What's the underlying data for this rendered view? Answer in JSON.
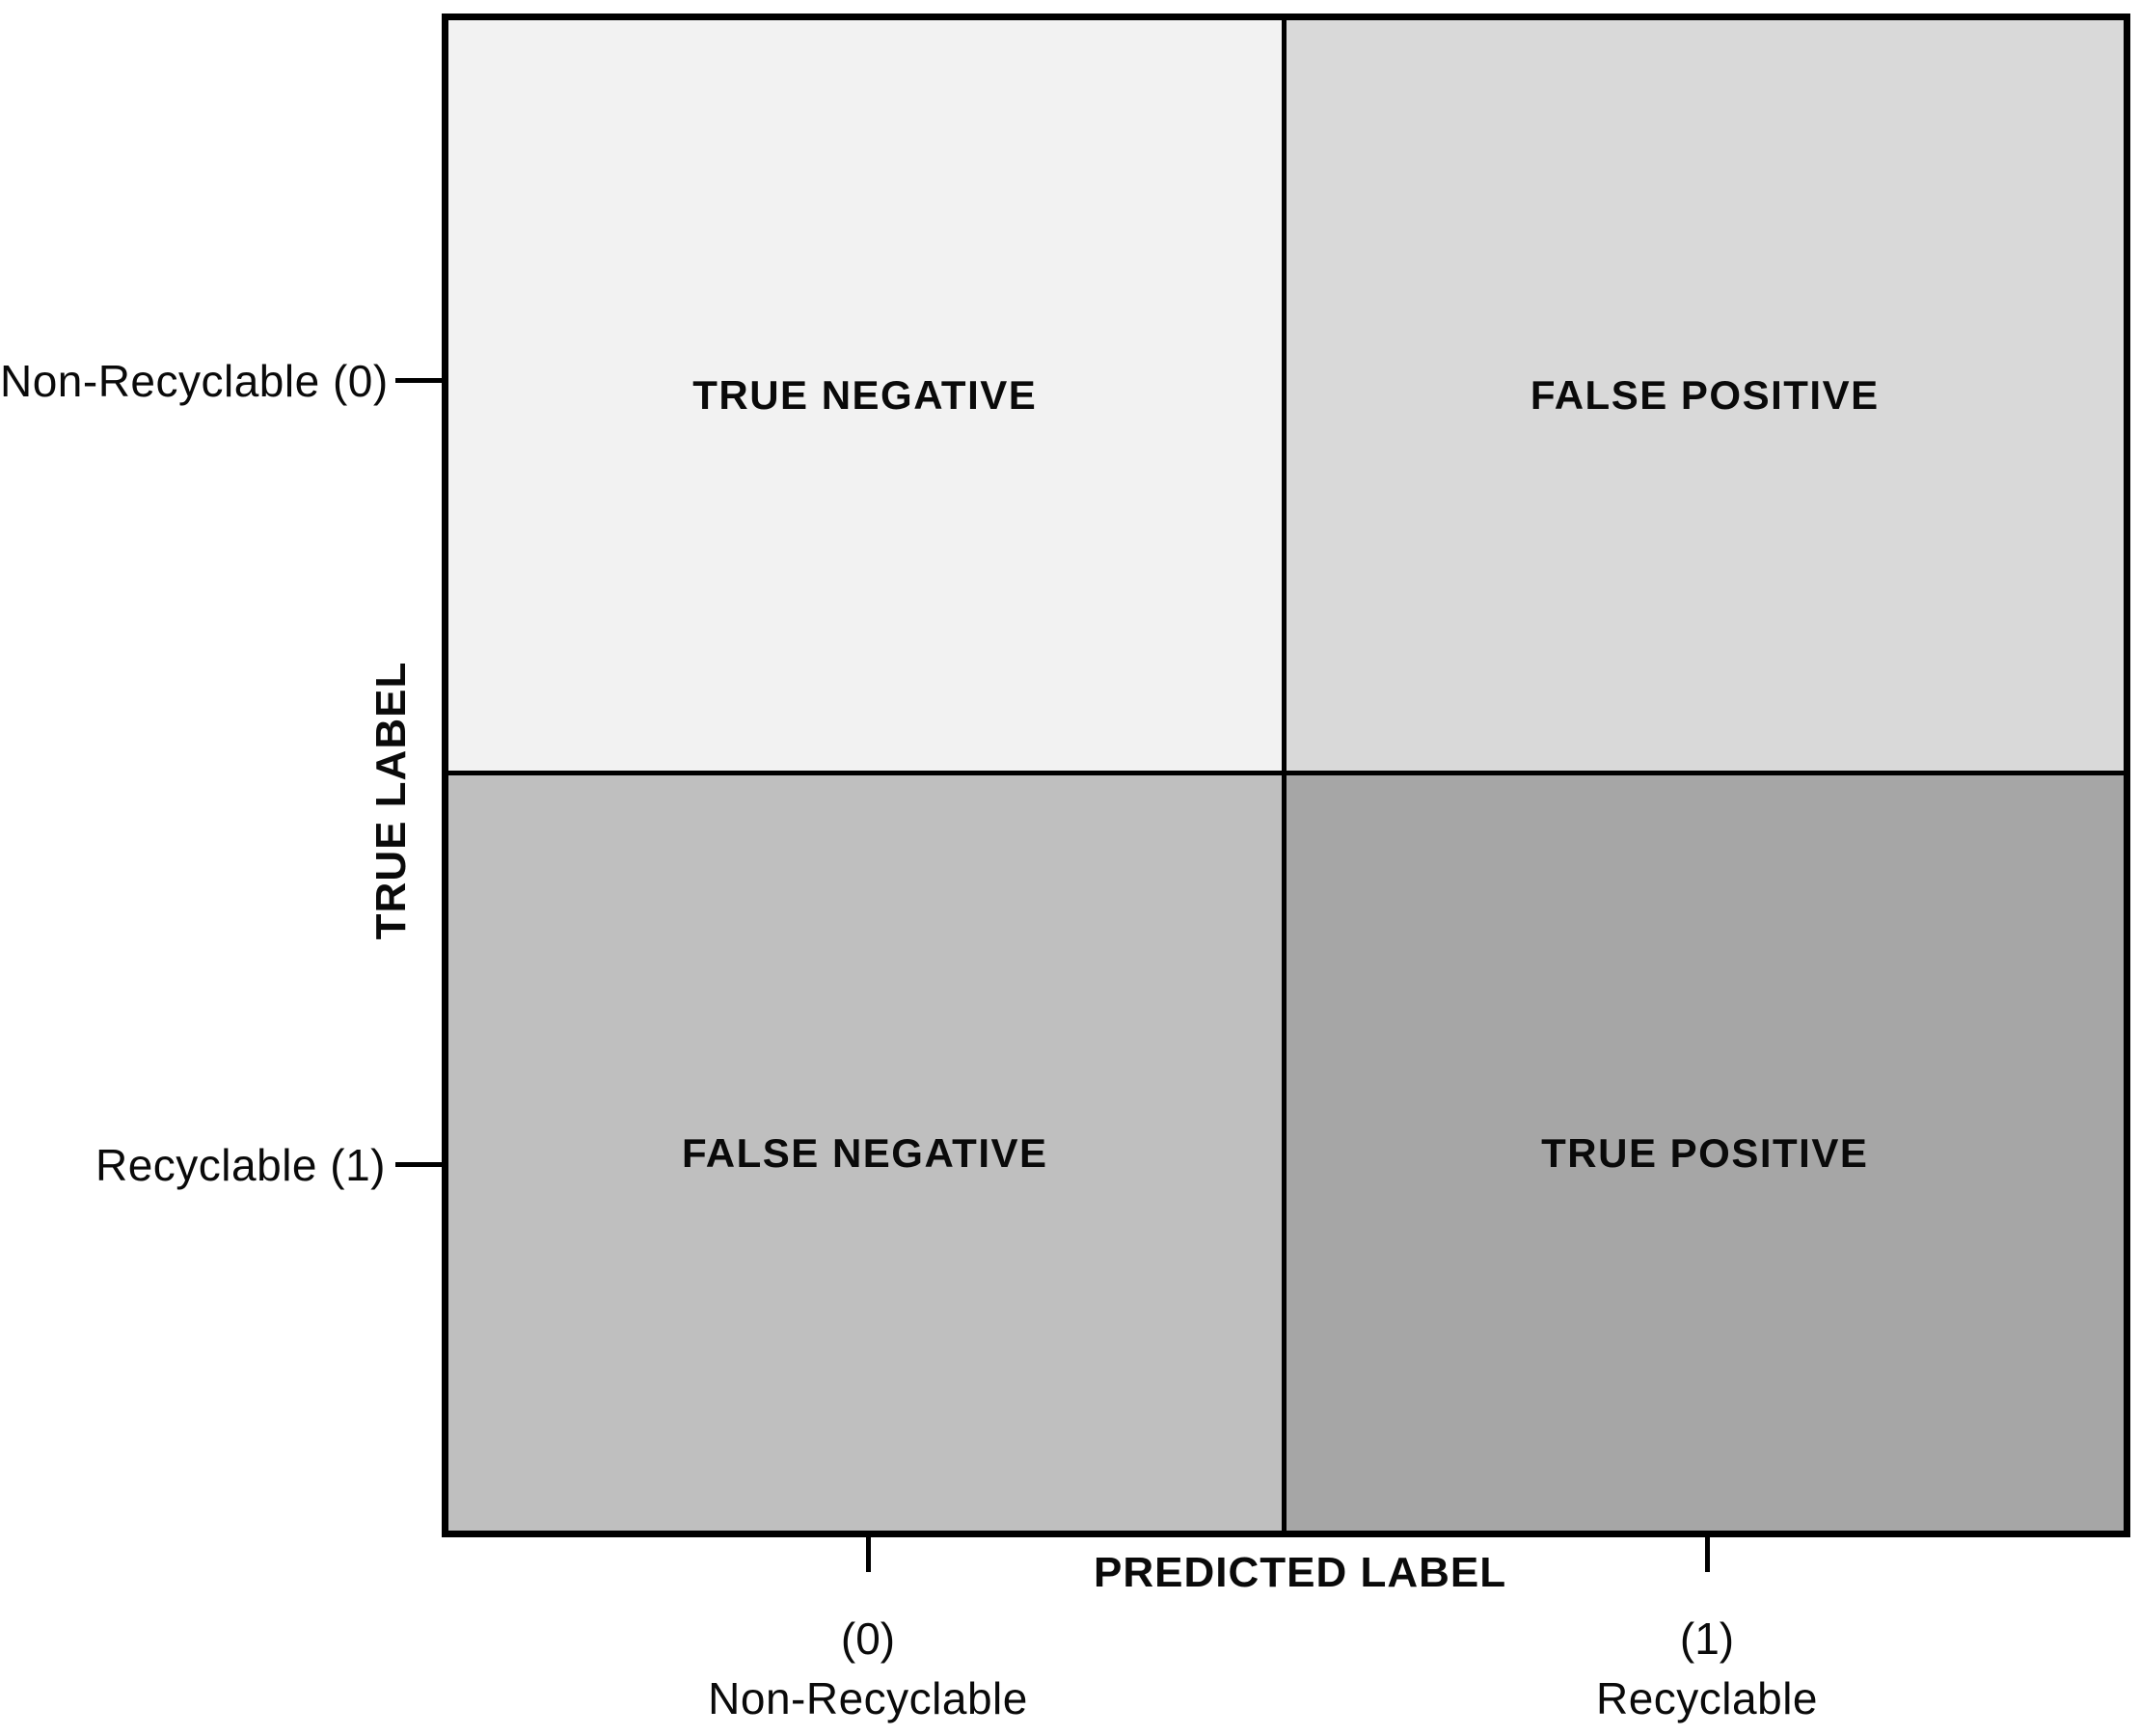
{
  "figure": {
    "kind": "confusion-matrix",
    "colors": {
      "background": "#ffffff",
      "border": "#000000",
      "text": "#0a0a0a"
    },
    "cells": [
      {
        "id": "true-negative",
        "label": "TRUE NEGATIVE",
        "bg": "#f2f2f2",
        "row": "Non-Recyclable (0)",
        "col": "Non-Recyclable (0)"
      },
      {
        "id": "false-positive",
        "label": "FALSE POSITIVE",
        "bg": "#d9d9d9",
        "row": "Non-Recyclable (0)",
        "col": "Recyclable (1)"
      },
      {
        "id": "false-negative",
        "label": "FALSE NEGATIVE",
        "bg": "#bfbfbf",
        "row": "Recyclable (1)",
        "col": "Non-Recyclable (0)"
      },
      {
        "id": "true-positive",
        "label": "TRUE POSITIVE",
        "bg": "#a6a6a6",
        "row": "Recyclable (1)",
        "col": "Recyclable (1)"
      }
    ],
    "y_axis": {
      "title": "TRUE LABEL",
      "ticks": [
        {
          "label": "Non-Recyclable (0)"
        },
        {
          "label": "Recyclable (1)"
        }
      ]
    },
    "x_axis": {
      "title": "PREDICTED LABEL",
      "ticks": [
        {
          "code": "(0)",
          "label": "Non-Recyclable"
        },
        {
          "code": "(1)",
          "label": "Recyclable"
        }
      ]
    }
  }
}
